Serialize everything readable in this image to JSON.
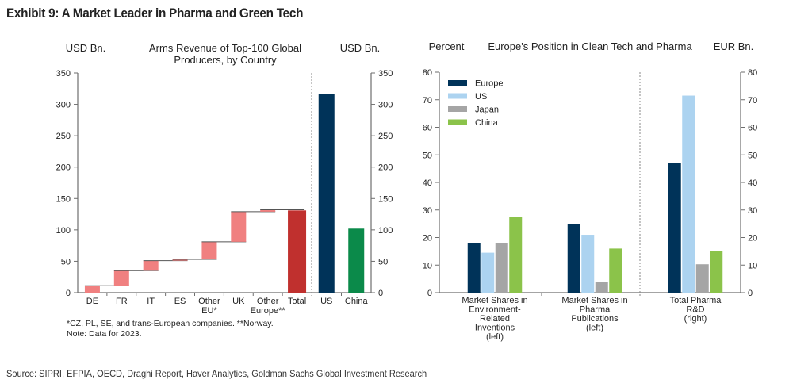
{
  "exhibit": {
    "title": "Exhibit 9: A Market Leader in Pharma and Green Tech",
    "source": "Source: SIPRI, EFPIA, OECD, Draghi Report, Haver Analytics, Goldman Sachs Global Investment Research"
  },
  "chart_data": [
    {
      "type": "bar",
      "subtype": "waterfall",
      "title": "Arms Revenue of Top-100 Global Producers, by Country",
      "title_lines": [
        "Arms Revenue of Top-100 Global",
        "Producers, by Country"
      ],
      "ylabel_left": "USD Bn.",
      "ylabel_right": "USD Bn.",
      "ylim": [
        0,
        350
      ],
      "yticks": [
        0,
        50,
        100,
        150,
        200,
        250,
        300,
        350
      ],
      "yticks_labels": [
        "0",
        "50",
        "100",
        "150",
        "200",
        "250",
        "300",
        "350"
      ],
      "grid": false,
      "waterfall": {
        "categories": [
          "DE",
          "FR",
          "IT",
          "ES",
          "Other EU*",
          "UK",
          "Other Europe**",
          "Total"
        ],
        "category_lines": [
          [
            "DE"
          ],
          [
            "FR"
          ],
          [
            "IT"
          ],
          [
            "ES"
          ],
          [
            "Other",
            "EU*"
          ],
          [
            "UK"
          ],
          [
            "Other",
            "Europe**"
          ],
          [
            "Total"
          ]
        ],
        "values": [
          11,
          24,
          16,
          2,
          28,
          48,
          3,
          131
        ],
        "is_total": [
          false,
          false,
          false,
          false,
          false,
          false,
          false,
          true
        ],
        "colors": {
          "increment": "#f08080",
          "total": "#c0302e"
        }
      },
      "comparison": {
        "categories": [
          "US",
          "China"
        ],
        "values": [
          316,
          102
        ],
        "colors": [
          "#003359",
          "#0b8a4a"
        ]
      },
      "footnotes": [
        "*CZ, PL, SE, and trans-European companies. **Norway.",
        "Note: Data for 2023."
      ]
    },
    {
      "type": "bar",
      "subtype": "grouped",
      "title": "Europe's Position in Clean Tech and Pharma",
      "ylabel_left": "Percent",
      "ylabel_right": "EUR Bn.",
      "ylim": [
        0,
        80
      ],
      "yticks": [
        0,
        10,
        20,
        30,
        40,
        50,
        60,
        70,
        80
      ],
      "yticks_labels": [
        "0",
        "10",
        "20",
        "30",
        "40",
        "50",
        "60",
        "70",
        "80"
      ],
      "grid": false,
      "legend": "top-left",
      "categories": [
        "Market Shares in Environment-Related Inventions (left)",
        "Market Shares in Pharma Publications (left)",
        "Total Pharma R&D (right)"
      ],
      "category_lines": [
        [
          "Market Shares in",
          "Environment-",
          "Related",
          "Inventions",
          "(left)"
        ],
        [
          "Market Shares in",
          "Pharma",
          "Publications",
          "(left)"
        ],
        [
          "Total Pharma",
          "R&D",
          "(right)"
        ]
      ],
      "axis": [
        "left",
        "left",
        "right"
      ],
      "series": [
        {
          "name": "Europe",
          "color": "#003359",
          "values": [
            18,
            25,
            47
          ]
        },
        {
          "name": "US",
          "color": "#acd3f0",
          "values": [
            14.5,
            21,
            71.5
          ]
        },
        {
          "name": "Japan",
          "color": "#a5a5a5",
          "values": [
            18,
            4,
            10.3
          ]
        },
        {
          "name": "China",
          "color": "#8bc34a",
          "values": [
            27.5,
            16,
            15
          ]
        }
      ]
    }
  ]
}
